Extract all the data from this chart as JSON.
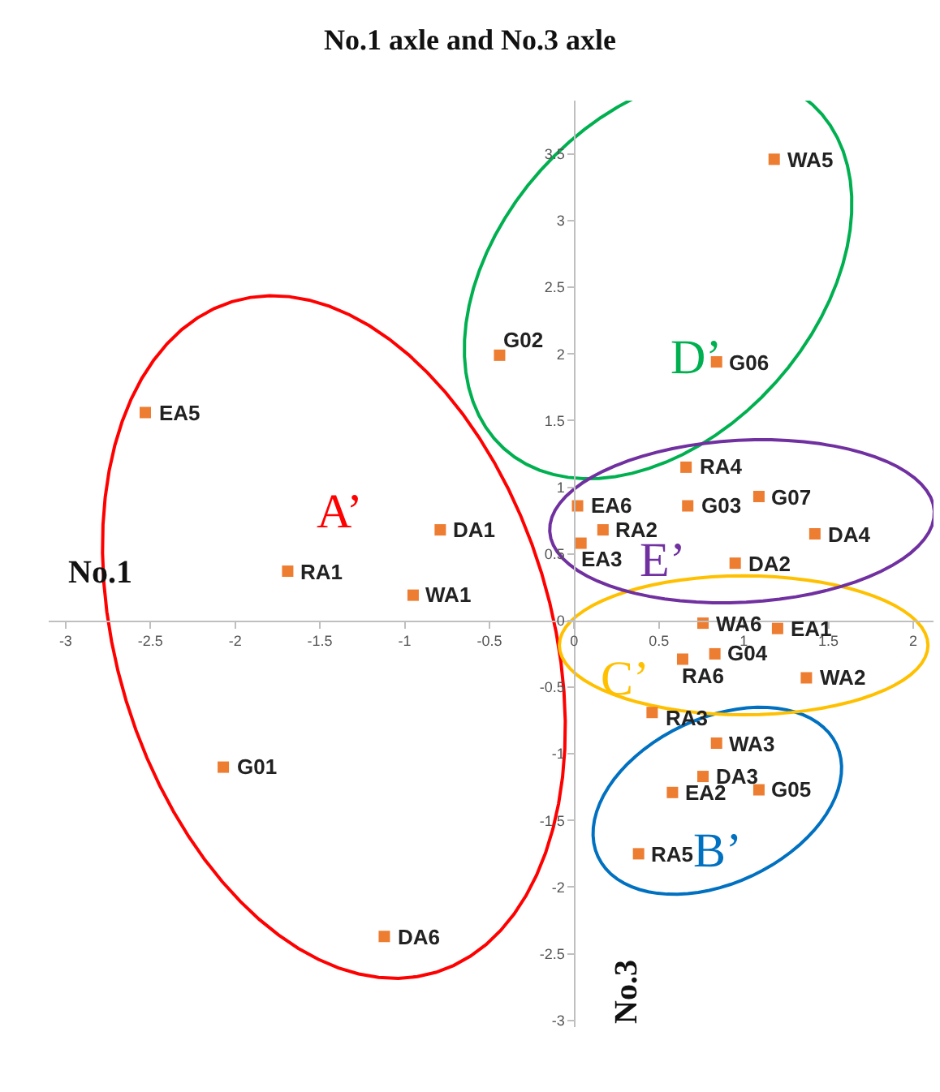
{
  "chart_data": {
    "type": "scatter",
    "title": "No.1 axle and No.3 axle",
    "xlabel": "No.1",
    "ylabel": "No.3",
    "xlim": [
      -3.1,
      2.12
    ],
    "ylim": [
      -3.05,
      3.9
    ],
    "xticks": [
      -3,
      -2.5,
      -2,
      -1.5,
      -1,
      -0.5,
      0,
      0.5,
      1,
      1.5,
      2
    ],
    "yticks": [
      -3,
      -2.5,
      -2,
      -1.5,
      -1,
      -0.5,
      0,
      0.5,
      1,
      1.5,
      2,
      2.5,
      3,
      3.5
    ],
    "marker": "square",
    "series": [
      {
        "color": "#ed7d31",
        "x": [
          1.18,
          -0.44,
          0.84,
          -2.53,
          0.66,
          1.09,
          0.02,
          0.67,
          -0.79,
          0.17,
          1.42,
          0.04,
          0.95,
          -1.69,
          -0.95,
          0.76,
          1.2,
          0.64,
          0.83,
          1.37,
          0.46,
          0.84,
          0.76,
          1.09,
          0.58,
          -2.07,
          0.38,
          -1.12
        ],
        "values": [
          3.46,
          1.99,
          1.94,
          1.56,
          1.15,
          0.93,
          0.86,
          0.86,
          0.68,
          0.68,
          0.65,
          0.58,
          0.43,
          0.37,
          0.19,
          -0.02,
          -0.06,
          -0.29,
          -0.25,
          -0.43,
          -0.69,
          -0.92,
          -1.17,
          -1.27,
          -1.29,
          -1.1,
          -1.75,
          -2.37
        ]
      }
    ],
    "annotations": [
      {
        "text": "WA5",
        "x": 1.18,
        "y": 3.46
      },
      {
        "text": "G02",
        "x": -0.44,
        "y": 1.99
      },
      {
        "text": "G06",
        "x": 0.84,
        "y": 1.94
      },
      {
        "text": "EA5",
        "x": -2.53,
        "y": 1.56
      },
      {
        "text": "RA4",
        "x": 0.66,
        "y": 1.15
      },
      {
        "text": "G07",
        "x": 1.09,
        "y": 0.93
      },
      {
        "text": "EA6",
        "x": 0.02,
        "y": 0.86
      },
      {
        "text": "G03",
        "x": 0.67,
        "y": 0.86
      },
      {
        "text": "DA1",
        "x": -0.79,
        "y": 0.68
      },
      {
        "text": "RA2",
        "x": 0.17,
        "y": 0.68
      },
      {
        "text": "DA4",
        "x": 1.42,
        "y": 0.65
      },
      {
        "text": "EA3",
        "x": 0.04,
        "y": 0.58
      },
      {
        "text": "DA2",
        "x": 0.95,
        "y": 0.43
      },
      {
        "text": "RA1",
        "x": -1.69,
        "y": 0.37
      },
      {
        "text": "WA1",
        "x": -0.95,
        "y": 0.19
      },
      {
        "text": "WA6",
        "x": 0.76,
        "y": -0.02
      },
      {
        "text": "EA1",
        "x": 1.2,
        "y": -0.06
      },
      {
        "text": "RA6",
        "x": 0.64,
        "y": -0.29
      },
      {
        "text": "G04",
        "x": 0.83,
        "y": -0.25
      },
      {
        "text": "WA2",
        "x": 1.37,
        "y": -0.43
      },
      {
        "text": "RA3",
        "x": 0.46,
        "y": -0.69
      },
      {
        "text": "WA3",
        "x": 0.84,
        "y": -0.92
      },
      {
        "text": "DA3",
        "x": 0.76,
        "y": -1.17
      },
      {
        "text": "G05",
        "x": 1.09,
        "y": -1.27
      },
      {
        "text": "EA2",
        "x": 0.58,
        "y": -1.29
      },
      {
        "text": "G01",
        "x": -2.07,
        "y": -1.1
      },
      {
        "text": "RA5",
        "x": 0.38,
        "y": -1.75
      },
      {
        "text": "DA6",
        "x": -1.12,
        "y": -2.37
      },
      "A’",
      "B’",
      "C’",
      "D’",
      "E’"
    ]
  }
}
